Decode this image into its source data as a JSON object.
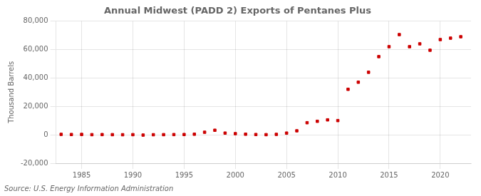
{
  "chart_data": {
    "type": "scatter",
    "title": "Annual Midwest (PADD 2) Exports of Pentanes Plus",
    "ylabel": "Thousand Barrels",
    "annotations": [
      "Source: U.S. Energy Information Administration"
    ],
    "x": [
      1983,
      1984,
      1985,
      1986,
      1987,
      1988,
      1989,
      1990,
      1991,
      1992,
      1993,
      1994,
      1995,
      1996,
      1997,
      1998,
      1999,
      2000,
      2001,
      2002,
      2003,
      2004,
      2005,
      2006,
      2007,
      2008,
      2009,
      2010,
      2011,
      2012,
      2013,
      2014,
      2015,
      2016,
      2017,
      2018,
      2019,
      2020,
      2021,
      2022
    ],
    "values": [
      300,
      200,
      250,
      100,
      150,
      100,
      50,
      100,
      -200,
      50,
      100,
      150,
      200,
      400,
      1800,
      3200,
      1200,
      800,
      400,
      200,
      100,
      300,
      1200,
      2800,
      8500,
      9500,
      10500,
      10000,
      32000,
      37000,
      44000,
      55000,
      62000,
      70500,
      62000,
      64000,
      59500,
      67000,
      68000,
      69000
    ],
    "color": "#cc0000",
    "marker": "square",
    "xlim": [
      1982.5,
      2023
    ],
    "xticks": [
      1985,
      1990,
      1995,
      2000,
      2005,
      2010,
      2015,
      2020
    ],
    "ylim": [
      -20000,
      80000
    ],
    "yticks": [
      {
        "value": -20000,
        "label": "-20,000"
      },
      0,
      {
        "value": 20000,
        "label": "20,000"
      },
      {
        "value": 40000,
        "label": "40,000"
      },
      {
        "value": 60000,
        "label": "60,000"
      },
      {
        "value": 80000,
        "label": "80,000"
      }
    ],
    "grid": true
  }
}
